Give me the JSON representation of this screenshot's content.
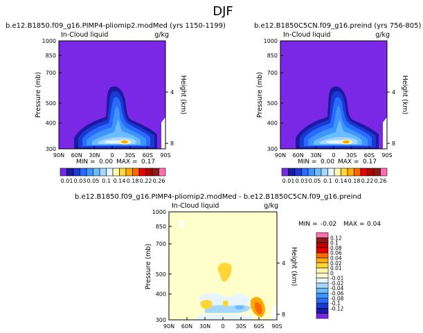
{
  "figure_title": "DJF",
  "colors": {
    "palette": [
      "#7a28e6",
      "#1a1aa3",
      "#1a3ad6",
      "#2a6bff",
      "#3f95ff",
      "#6bbcff",
      "#a6d8ff",
      "#e6f5ff",
      "#fff6b0",
      "#ffd633",
      "#ffaa00",
      "#ff6a00",
      "#e60000",
      "#b30000",
      "#8c1a1a",
      "#ff70b0"
    ],
    "diff_palette": [
      "#ff70b0",
      "#8c1a1a",
      "#c00000",
      "#e60000",
      "#ff6a00",
      "#ffaa00",
      "#ffd633",
      "#fff6b0",
      "#ffffcc",
      "#e6f5ff",
      "#a6d8ff",
      "#6bbcff",
      "#3f95ff",
      "#2a6bff",
      "#1a3ad6",
      "#1a1aa3",
      "#7a28e6"
    ]
  },
  "chart_data": [
    {
      "type": "heatmap",
      "title": "b.e12.B1850.f09_g16.PIMP4-pliomip2.modMed (yrs 1150-1199)",
      "variable": "In-Cloud liquid",
      "units": "g/kg",
      "ylabel": "Pressure (mb)",
      "y2label": "Height (km)",
      "x_ticks": [
        "90N",
        "60N",
        "30N",
        "0",
        "30S",
        "60S",
        "90S"
      ],
      "y_ticks": [
        "300",
        "400",
        "500",
        "700",
        "850",
        "1000"
      ],
      "y2_ticks": [
        "8",
        "4"
      ],
      "min_label": "MIN =",
      "min_value": "0.00",
      "max_label": "MAX =",
      "max_value": "0.17",
      "colorbar_levels": [
        "0.01",
        "0.03",
        "0.05",
        "0.1",
        "0.14",
        "0.18",
        "0.22",
        "0.26"
      ],
      "ylim": [
        1000,
        300
      ]
    },
    {
      "type": "heatmap",
      "title": "b.e12.B1850C5CN.f09_g16.preind (yrs 756-805)",
      "variable": "In-Cloud liquid",
      "units": "g/kg",
      "ylabel": "Pressure (mb)",
      "y2label": "Height (km)",
      "x_ticks": [
        "90N",
        "60N",
        "30N",
        "0",
        "30S",
        "60S",
        "90S"
      ],
      "y_ticks": [
        "300",
        "400",
        "500",
        "700",
        "850",
        "1000"
      ],
      "y2_ticks": [
        "8",
        "4"
      ],
      "min_label": "MIN =",
      "min_value": "0.00",
      "max_label": "MAX =",
      "max_value": "0.17",
      "colorbar_levels": [
        "0.01",
        "0.03",
        "0.05",
        "0.1",
        "0.14",
        "0.18",
        "0.22",
        "0.26"
      ],
      "ylim": [
        1000,
        300
      ]
    },
    {
      "type": "heatmap",
      "title": "b.e12.B1850.f09_g16.PIMP4-pliomip2.modMed - b.e12.B1850C5CN.f09_g16.preind",
      "variable": "In-Cloud liquid",
      "units": "g/kg",
      "ylabel": "Pressure (mb)",
      "y2label": "Height (km)",
      "x_ticks": [
        "90N",
        "60N",
        "30N",
        "0",
        "30S",
        "60S",
        "90S"
      ],
      "y_ticks": [
        "300",
        "400",
        "500",
        "700",
        "850",
        "1000"
      ],
      "y2_ticks": [
        "8",
        "4"
      ],
      "min_label": "MIN =",
      "min_value": "-0.02",
      "max_label": "MAX =",
      "max_value": "0.04",
      "colorbar_levels": [
        "0.12",
        "0.1",
        "0.08",
        "0.06",
        "0.04",
        "0.02",
        "0.01",
        "0",
        "-0.01",
        "-0.02",
        "-0.04",
        "-0.06",
        "-0.08",
        "-0.1",
        "-0.12"
      ],
      "ylim": [
        1000,
        300
      ]
    }
  ]
}
